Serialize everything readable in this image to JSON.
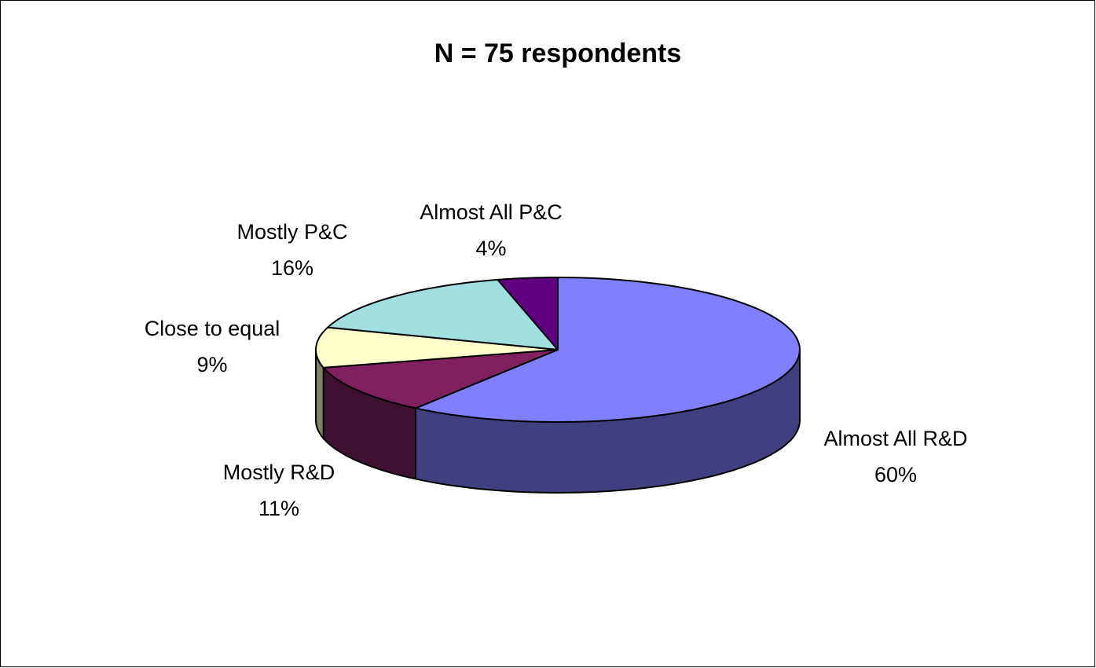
{
  "chart_data": {
    "type": "pie",
    "title": "N = 75 respondents",
    "categories": [
      "Almost All R&D",
      "Mostly R&D",
      "Close to equal",
      "Mostly P&C",
      "Almost All P&C"
    ],
    "values": [
      60,
      11,
      9,
      16,
      4
    ],
    "value_labels": [
      "60%",
      "11%",
      "9%",
      "16%",
      "4%"
    ],
    "colors": [
      "#8080ff",
      "#802060",
      "#ffffcc",
      "#a0e0e0",
      "#600080"
    ]
  }
}
